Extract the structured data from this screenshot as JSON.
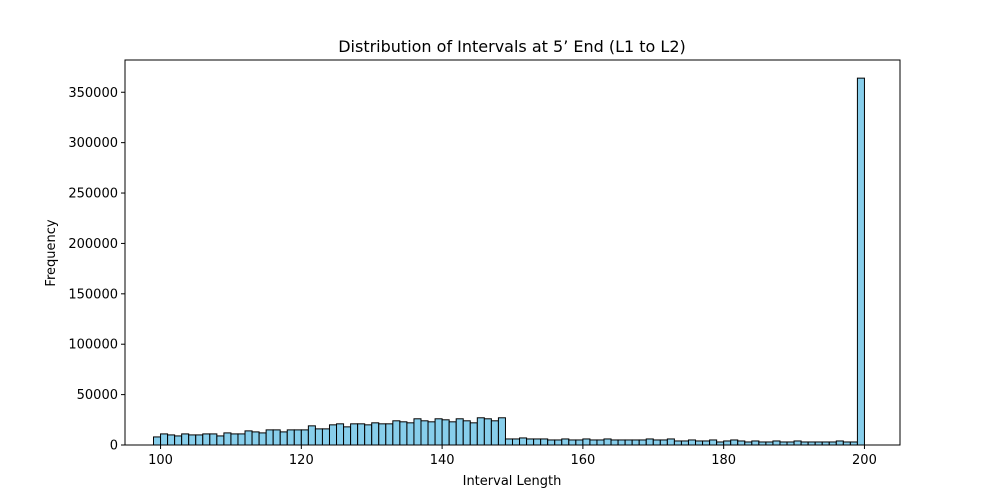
{
  "chart_data": {
    "type": "bar",
    "title": "Distribution of Intervals at 5’ End (L1 to L2)",
    "xlabel": "Interval Length",
    "ylabel": "Frequency",
    "xlim": [
      94.95,
      205.05
    ],
    "ylim": [
      0,
      382000
    ],
    "xticks": [
      100,
      120,
      140,
      160,
      180,
      200
    ],
    "yticks": [
      0,
      50000,
      100000,
      150000,
      200000,
      250000,
      300000,
      350000
    ],
    "bin_start": 99,
    "bin_width": 1,
    "values": [
      8000,
      11000,
      10000,
      9000,
      11000,
      10000,
      10000,
      11000,
      11000,
      9000,
      12000,
      11000,
      11000,
      14000,
      13000,
      12000,
      15000,
      15000,
      13000,
      15000,
      15000,
      15000,
      19000,
      16000,
      16000,
      20000,
      21000,
      18000,
      21000,
      21000,
      20000,
      22000,
      21000,
      21000,
      24000,
      23000,
      22000,
      26000,
      24000,
      23000,
      26000,
      25000,
      23000,
      26000,
      24000,
      22000,
      27000,
      26000,
      24000,
      27000,
      6000,
      6000,
      7000,
      6000,
      6000,
      6000,
      5000,
      5000,
      6000,
      5000,
      5000,
      6000,
      5000,
      5000,
      6000,
      5000,
      5000,
      5000,
      5000,
      5000,
      6000,
      5000,
      5000,
      6000,
      4000,
      4000,
      5000,
      4000,
      4000,
      5000,
      3000,
      4000,
      5000,
      4000,
      3000,
      4000,
      3000,
      3000,
      4000,
      3000,
      3000,
      4000,
      3000,
      3000,
      3000,
      3000,
      3000,
      4000,
      3000,
      3000,
      364000
    ]
  }
}
